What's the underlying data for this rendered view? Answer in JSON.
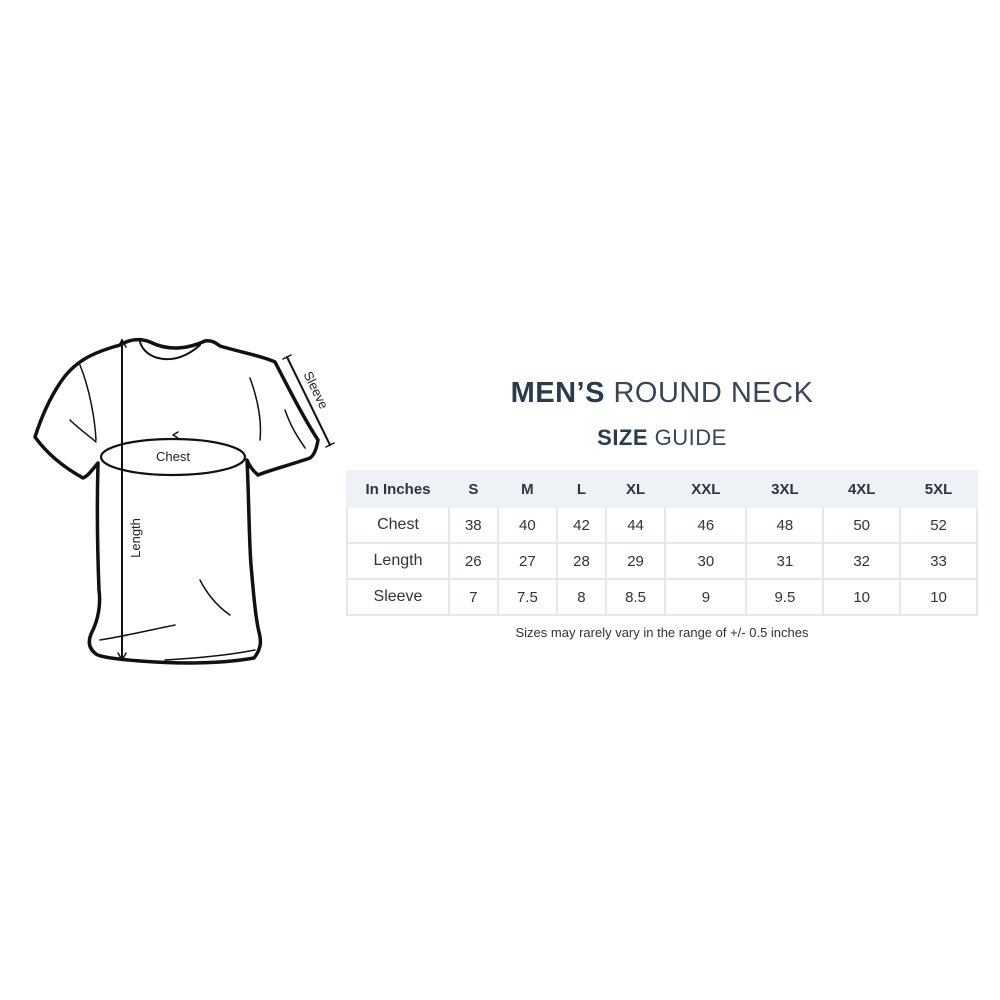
{
  "diagram": {
    "labels": {
      "chest": "Chest",
      "length": "Length",
      "sleeve": "Sleeve"
    }
  },
  "heading": {
    "bold": "MEN’S",
    "light": "ROUND NECK"
  },
  "subheading": {
    "bold": "SIZE",
    "light": "GUIDE"
  },
  "table": {
    "headers": [
      "In Inches",
      "S",
      "M",
      "L",
      "XL",
      "XXL",
      "3XL",
      "4XL",
      "5XL"
    ],
    "rows": [
      {
        "label": "Chest",
        "values": [
          "38",
          "40",
          "42",
          "44",
          "46",
          "48",
          "50",
          "52"
        ]
      },
      {
        "label": "Length",
        "values": [
          "26",
          "27",
          "28",
          "29",
          "30",
          "31",
          "32",
          "33"
        ]
      },
      {
        "label": "Sleeve",
        "values": [
          "7",
          "7.5",
          "8",
          "8.5",
          "9",
          "9.5",
          "10",
          "10"
        ]
      }
    ]
  },
  "note": "Sizes may rarely vary in the range of +/- 0.5 inches"
}
